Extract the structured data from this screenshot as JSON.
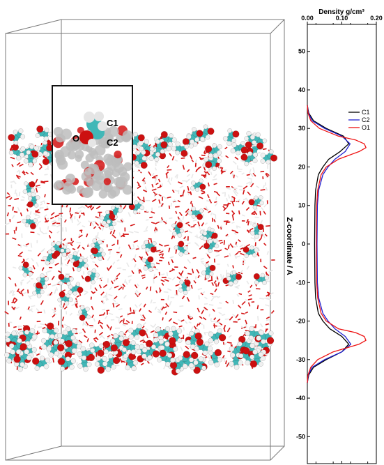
{
  "inset": {
    "labels": {
      "c1": "C1",
      "c2": "C2",
      "o": "O"
    }
  },
  "colors": {
    "background": "#ffffff",
    "box": "#7a7a7a",
    "water_oxygen": "#d41414",
    "water_hydrogen": "#e8e8e8",
    "carbon": "#41b7b7",
    "oxygen": "#cc1010",
    "hydrogen": "#f0f0f0",
    "graphene": "#bdbdbd",
    "c1_line": "#000000",
    "c2_line": "#1f1fd0",
    "o1_line": "#ee1111"
  },
  "chart_data": {
    "type": "line",
    "orientation": "vertical",
    "title": "Density g/cm³",
    "xlabel": "Density g/cm³",
    "ylabel": "Z-coordinate / A",
    "xlim": [
      0.0,
      0.2
    ],
    "ylim": [
      -57,
      57
    ],
    "x_ticks": [
      "0.00",
      "0.10",
      "0.20"
    ],
    "y_ticks": [
      "50",
      "40",
      "30",
      "20",
      "10",
      "0",
      "-10",
      "-20",
      "-30",
      "-40",
      "-50"
    ],
    "legend": {
      "placement": "upper-right"
    },
    "series": [
      {
        "name": "C1",
        "z": [
          36,
          34,
          32,
          30,
          28,
          26,
          24,
          22,
          20,
          18,
          14,
          10,
          0,
          -10,
          -14,
          -18,
          -20,
          -22,
          -24,
          -26,
          -28,
          -30,
          -32,
          -34,
          -36
        ],
        "density": [
          0.0,
          0.004,
          0.018,
          0.055,
          0.105,
          0.12,
          0.095,
          0.062,
          0.045,
          0.032,
          0.024,
          0.022,
          0.021,
          0.022,
          0.024,
          0.032,
          0.045,
          0.065,
          0.1,
          0.12,
          0.1,
          0.055,
          0.018,
          0.004,
          0.0
        ]
      },
      {
        "name": "C2",
        "z": [
          36,
          34,
          32,
          30,
          28,
          26,
          24,
          22,
          20,
          18,
          14,
          10,
          0,
          -10,
          -14,
          -18,
          -20,
          -22,
          -24,
          -26,
          -28,
          -30,
          -32,
          -34,
          -36
        ],
        "density": [
          0.0,
          0.003,
          0.014,
          0.05,
          0.1,
          0.124,
          0.11,
          0.08,
          0.06,
          0.045,
          0.033,
          0.029,
          0.028,
          0.029,
          0.033,
          0.045,
          0.06,
          0.08,
          0.11,
          0.126,
          0.1,
          0.05,
          0.014,
          0.003,
          0.0
        ]
      },
      {
        "name": "O1",
        "z": [
          36,
          34,
          32,
          30,
          28,
          27,
          26,
          25,
          24,
          22,
          20,
          18,
          14,
          10,
          0,
          -10,
          -14,
          -18,
          -20,
          -22,
          -23,
          -24,
          -25,
          -26,
          -28,
          -30,
          -32,
          -34,
          -36
        ],
        "density": [
          0.0,
          0.002,
          0.01,
          0.035,
          0.09,
          0.14,
          0.165,
          0.17,
          0.15,
          0.09,
          0.055,
          0.04,
          0.03,
          0.027,
          0.026,
          0.027,
          0.03,
          0.04,
          0.055,
          0.09,
          0.14,
          0.165,
          0.17,
          0.15,
          0.075,
          0.03,
          0.01,
          0.002,
          0.0
        ]
      }
    ]
  }
}
